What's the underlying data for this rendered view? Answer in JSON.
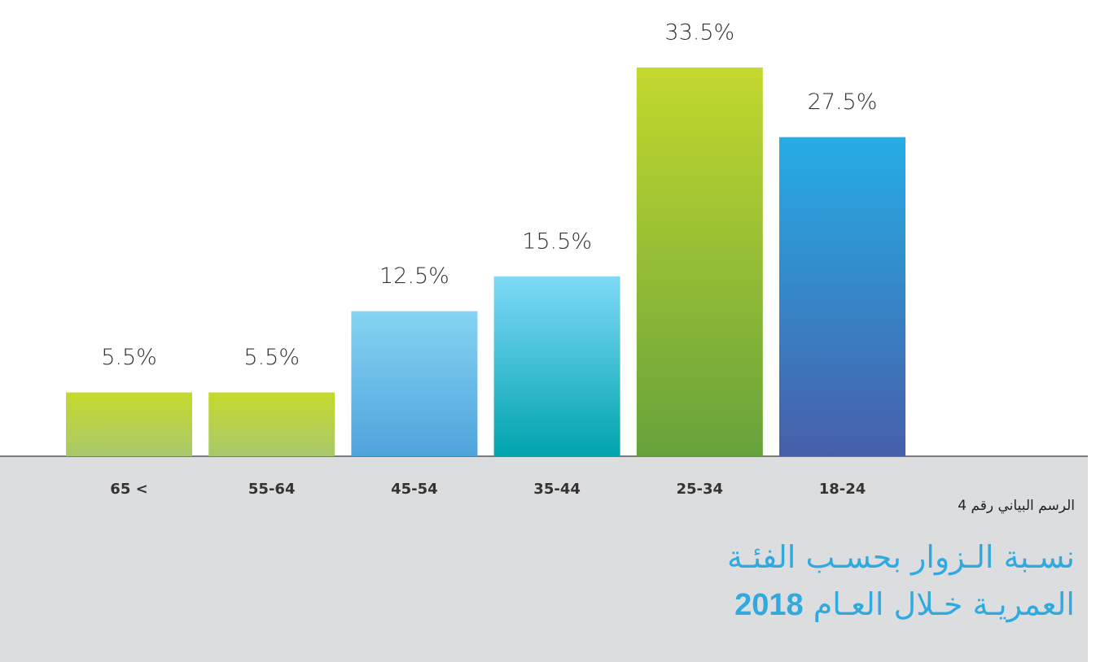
{
  "chart_data": {
    "type": "bar",
    "categories": [
      "65 <",
      "55-64",
      "45-54",
      "35-44",
      "25-34",
      "18-24"
    ],
    "values": [
      5.5,
      5.5,
      12.5,
      15.5,
      33.5,
      27.5
    ],
    "value_labels": [
      "5.5%",
      "5.5%",
      "12.5%",
      "15.5%",
      "33.5%",
      "27.5%"
    ],
    "colors": [
      [
        "#c6d92b",
        "#a8c86c"
      ],
      [
        "#c6d92b",
        "#a8c86c"
      ],
      [
        "#86d4f2",
        "#4ea3dc"
      ],
      [
        "#7fd9f7",
        "#00a4ae"
      ],
      [
        "#c3d82d",
        "#66a23b"
      ],
      [
        "#25ade5",
        "#465ea9"
      ]
    ],
    "caption": "الرسم البياني رقم 4",
    "title_lines": [
      "نسـبة الـزوار بحسـب الفئـة",
      "العمريـة خـلال العـام"
    ],
    "title_year": "2018"
  }
}
